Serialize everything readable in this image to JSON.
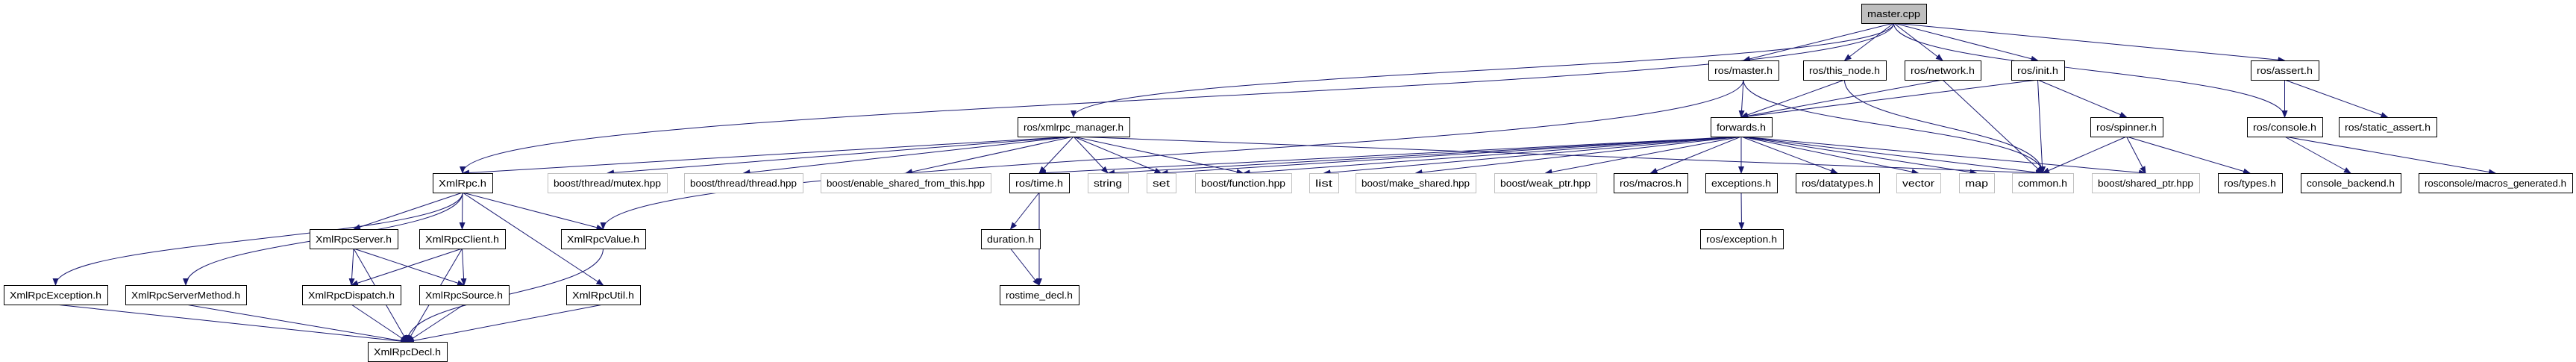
{
  "graph": {
    "title": "master.cpp",
    "nodes": [
      {
        "id": "master_cpp",
        "label": "master.cpp",
        "root": true
      },
      {
        "id": "ros_master",
        "label": "ros/master.h"
      },
      {
        "id": "ros_this_node",
        "label": "ros/this_node.h"
      },
      {
        "id": "ros_network",
        "label": "ros/network.h"
      },
      {
        "id": "ros_init",
        "label": "ros/init.h"
      },
      {
        "id": "ros_assert",
        "label": "ros/assert.h"
      },
      {
        "id": "xmlrpc_manager",
        "label": "ros/xmlrpc_manager.h"
      },
      {
        "id": "forwards",
        "label": "forwards.h"
      },
      {
        "id": "ros_spinner",
        "label": "ros/spinner.h"
      },
      {
        "id": "ros_console",
        "label": "ros/console.h"
      },
      {
        "id": "ros_static_assert",
        "label": "ros/static_assert.h"
      },
      {
        "id": "xmlrpc_h",
        "label": "XmlRpc.h"
      },
      {
        "id": "b_mutex",
        "label": "boost/thread/mutex.hpp",
        "external": true
      },
      {
        "id": "b_thread",
        "label": "boost/thread/thread.hpp",
        "external": true
      },
      {
        "id": "b_esft",
        "label": "boost/enable_shared_from_this.hpp",
        "external": true
      },
      {
        "id": "ros_time",
        "label": "ros/time.h"
      },
      {
        "id": "string",
        "label": "string",
        "external": true
      },
      {
        "id": "set",
        "label": "set",
        "external": true
      },
      {
        "id": "b_function",
        "label": "boost/function.hpp",
        "external": true
      },
      {
        "id": "list",
        "label": "list",
        "external": true
      },
      {
        "id": "b_make_shared",
        "label": "boost/make_shared.hpp",
        "external": true
      },
      {
        "id": "b_weak_ptr",
        "label": "boost/weak_ptr.hpp",
        "external": true
      },
      {
        "id": "ros_macros",
        "label": "ros/macros.h"
      },
      {
        "id": "exceptions",
        "label": "exceptions.h"
      },
      {
        "id": "ros_datatypes",
        "label": "ros/datatypes.h"
      },
      {
        "id": "vector",
        "label": "vector",
        "external": true
      },
      {
        "id": "map",
        "label": "map",
        "external": true
      },
      {
        "id": "common",
        "label": "common.h",
        "external": true
      },
      {
        "id": "b_shared_ptr",
        "label": "boost/shared_ptr.hpp",
        "external": true
      },
      {
        "id": "ros_types",
        "label": "ros/types.h"
      },
      {
        "id": "console_backend",
        "label": "console_backend.h"
      },
      {
        "id": "macros_generated",
        "label": "rosconsole/macros_generated.h"
      },
      {
        "id": "xr_server",
        "label": "XmlRpcServer.h"
      },
      {
        "id": "xr_client",
        "label": "XmlRpcClient.h"
      },
      {
        "id": "xr_value",
        "label": "XmlRpcValue.h"
      },
      {
        "id": "duration",
        "label": "duration.h"
      },
      {
        "id": "ros_exception",
        "label": "ros/exception.h"
      },
      {
        "id": "xr_exception",
        "label": "XmlRpcException.h"
      },
      {
        "id": "xr_servermethod",
        "label": "XmlRpcServerMethod.h"
      },
      {
        "id": "xr_dispatch",
        "label": "XmlRpcDispatch.h"
      },
      {
        "id": "xr_source",
        "label": "XmlRpcSource.h"
      },
      {
        "id": "xr_util",
        "label": "XmlRpcUtil.h"
      },
      {
        "id": "rostime_decl",
        "label": "rostime_decl.h"
      },
      {
        "id": "xr_decl",
        "label": "XmlRpcDecl.h"
      }
    ],
    "edges": [
      [
        "master_cpp",
        "ros_master"
      ],
      [
        "master_cpp",
        "ros_this_node"
      ],
      [
        "master_cpp",
        "ros_network"
      ],
      [
        "master_cpp",
        "ros_init"
      ],
      [
        "master_cpp",
        "ros_assert"
      ],
      [
        "master_cpp",
        "ros_console"
      ],
      [
        "master_cpp",
        "xmlrpc_manager"
      ],
      [
        "master_cpp",
        "xmlrpc_h"
      ],
      [
        "ros_master",
        "forwards"
      ],
      [
        "ros_master",
        "xr_value"
      ],
      [
        "ros_master",
        "common"
      ],
      [
        "ros_this_node",
        "forwards"
      ],
      [
        "ros_this_node",
        "common"
      ],
      [
        "ros_network",
        "forwards"
      ],
      [
        "ros_network",
        "common"
      ],
      [
        "ros_init",
        "forwards"
      ],
      [
        "ros_init",
        "common"
      ],
      [
        "ros_init",
        "ros_spinner"
      ],
      [
        "ros_assert",
        "ros_console"
      ],
      [
        "ros_assert",
        "ros_static_assert"
      ],
      [
        "xmlrpc_manager",
        "xmlrpc_h"
      ],
      [
        "xmlrpc_manager",
        "b_mutex"
      ],
      [
        "xmlrpc_manager",
        "b_thread"
      ],
      [
        "xmlrpc_manager",
        "b_esft"
      ],
      [
        "xmlrpc_manager",
        "ros_time"
      ],
      [
        "xmlrpc_manager",
        "string"
      ],
      [
        "xmlrpc_manager",
        "set"
      ],
      [
        "xmlrpc_manager",
        "b_function"
      ],
      [
        "xmlrpc_manager",
        "common"
      ],
      [
        "forwards",
        "string"
      ],
      [
        "forwards",
        "set"
      ],
      [
        "forwards",
        "list"
      ],
      [
        "forwards",
        "b_function"
      ],
      [
        "forwards",
        "ros_time"
      ],
      [
        "forwards",
        "b_make_shared"
      ],
      [
        "forwards",
        "b_weak_ptr"
      ],
      [
        "forwards",
        "ros_macros"
      ],
      [
        "forwards",
        "exceptions"
      ],
      [
        "forwards",
        "ros_datatypes"
      ],
      [
        "forwards",
        "vector"
      ],
      [
        "forwards",
        "map"
      ],
      [
        "forwards",
        "common"
      ],
      [
        "forwards",
        "b_shared_ptr"
      ],
      [
        "ros_spinner",
        "common"
      ],
      [
        "ros_spinner",
        "b_shared_ptr"
      ],
      [
        "ros_spinner",
        "ros_types"
      ],
      [
        "ros_console",
        "console_backend"
      ],
      [
        "ros_console",
        "macros_generated"
      ],
      [
        "exceptions",
        "ros_exception"
      ],
      [
        "ros_time",
        "duration"
      ],
      [
        "ros_time",
        "rostime_decl"
      ],
      [
        "duration",
        "rostime_decl"
      ],
      [
        "xmlrpc_h",
        "xr_exception"
      ],
      [
        "xmlrpc_h",
        "xr_servermethod"
      ],
      [
        "xmlrpc_h",
        "xr_server"
      ],
      [
        "xmlrpc_h",
        "xr_client"
      ],
      [
        "xmlrpc_h",
        "xr_value"
      ],
      [
        "xmlrpc_h",
        "xr_util"
      ],
      [
        "xr_server",
        "xr_dispatch"
      ],
      [
        "xr_server",
        "xr_source"
      ],
      [
        "xr_server",
        "xr_decl"
      ],
      [
        "xr_client",
        "xr_dispatch"
      ],
      [
        "xr_client",
        "xr_source"
      ],
      [
        "xr_client",
        "xr_decl"
      ],
      [
        "xr_value",
        "xr_decl"
      ],
      [
        "xr_exception",
        "xr_decl"
      ],
      [
        "xr_servermethod",
        "xr_decl"
      ],
      [
        "xr_dispatch",
        "xr_decl"
      ],
      [
        "xr_source",
        "xr_decl"
      ],
      [
        "xr_util",
        "xr_decl"
      ]
    ]
  },
  "colors": {
    "edge": "#191970",
    "root_fill": "#bfbfbf",
    "external_border": "#bfbfbf"
  }
}
